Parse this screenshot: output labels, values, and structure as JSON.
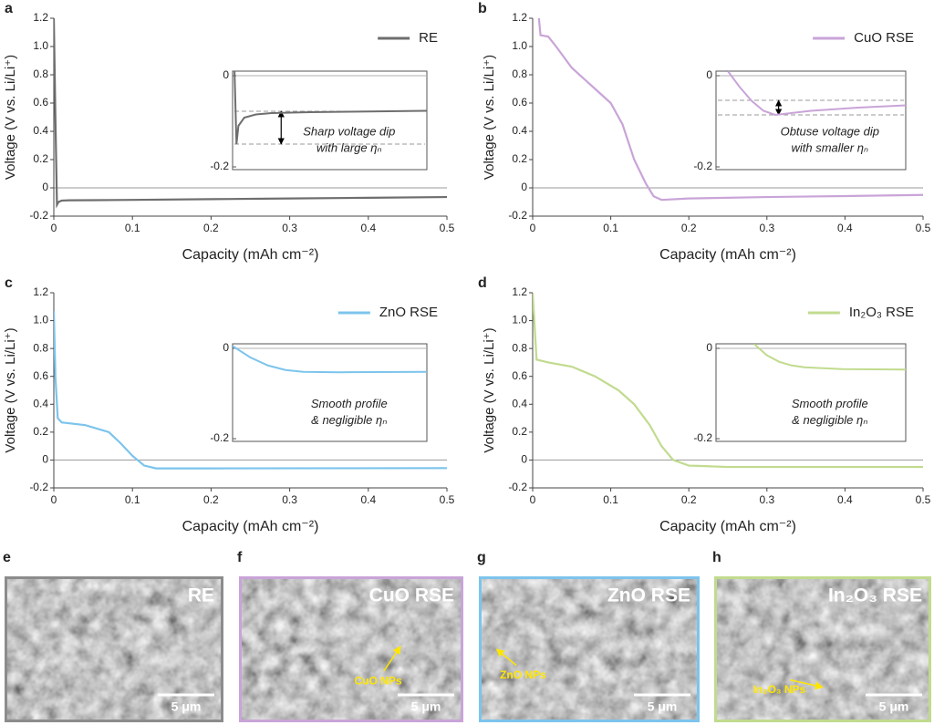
{
  "chart_data": [
    {
      "type": "line",
      "panel": "a",
      "xlabel": "Capacity (mAh cm⁻²)",
      "ylabel": "Voltage (V vs. Li/Li⁺)",
      "x": [
        0,
        0.002,
        0.004,
        0.006,
        0.01,
        0.02,
        0.05,
        0.1,
        0.2,
        0.3,
        0.4,
        0.5
      ],
      "series": [
        {
          "name": "RE",
          "color": "#6e6e6e",
          "values": [
            1.2,
            0.5,
            -0.12,
            -0.1,
            -0.09,
            -0.088,
            -0.087,
            -0.085,
            -0.08,
            -0.075,
            -0.07,
            -0.065
          ]
        }
      ],
      "xlim": [
        0,
        0.5
      ],
      "ylim": [
        -0.2,
        1.2
      ],
      "xticks": [
        0,
        0.1,
        0.2,
        0.3,
        0.4,
        0.5
      ],
      "yticks": [
        -0.2,
        0,
        0.2,
        0.4,
        0.6,
        0.8,
        {
          "value": 1,
          "label": "1.0"
        },
        1.2
      ],
      "inset": {
        "x": [
          0.0005,
          0.001,
          0.0015,
          0.003,
          0.006,
          0.01,
          0.02,
          0.03,
          0.04,
          0.05
        ],
        "values": [
          0.01,
          -0.15,
          -0.11,
          -0.092,
          -0.085,
          -0.082,
          -0.08,
          -0.079,
          -0.078,
          -0.077
        ],
        "xlim": [
          0,
          0.05
        ],
        "ylim": [
          -0.206,
          0.01
        ],
        "yticks": [
          0,
          -0.2
        ],
        "reference_lines": [
          -0.078,
          -0.15
        ],
        "annotation": [
          "Sharp voltage dip",
          "with large ηₙ"
        ]
      }
    },
    {
      "type": "line",
      "panel": "b",
      "xlabel": "Capacity (mAh cm⁻²)",
      "ylabel": "Voltage (V vs. Li/Li⁺)",
      "x": [
        0.008,
        0.01,
        0.02,
        0.03,
        0.05,
        0.08,
        0.1,
        0.115,
        0.13,
        0.145,
        0.155,
        0.165,
        0.2,
        0.3,
        0.4,
        0.5
      ],
      "series": [
        {
          "name": "CuO RSE",
          "color": "#c9a4d8",
          "values": [
            1.2,
            1.08,
            1.07,
            1.0,
            0.85,
            0.7,
            0.6,
            0.45,
            0.2,
            0.03,
            -0.06,
            -0.085,
            -0.075,
            -0.065,
            -0.058,
            -0.05
          ]
        }
      ],
      "xlim": [
        0,
        0.5
      ],
      "ylim": [
        -0.2,
        1.2
      ],
      "xticks": [
        0,
        0.1,
        0.2,
        0.3,
        0.4,
        0.5
      ],
      "yticks": [
        -0.2,
        0,
        0.2,
        0.4,
        0.6,
        0.8,
        {
          "value": 1,
          "label": "1.0"
        },
        1.2
      ],
      "inset": {
        "x": [
          0.145,
          0.15,
          0.155,
          0.16,
          0.165,
          0.17,
          0.18,
          0.2,
          0.22
        ],
        "values": [
          0.01,
          -0.025,
          -0.055,
          -0.077,
          -0.086,
          -0.083,
          -0.077,
          -0.07,
          -0.065
        ],
        "xlim": [
          0.14,
          0.22
        ],
        "ylim": [
          -0.206,
          0.01
        ],
        "yticks": [
          0,
          -0.2
        ],
        "reference_lines": [
          -0.054,
          -0.086
        ],
        "annotation": [
          "Obtuse voltage dip",
          "with smaller ηₙ"
        ]
      }
    },
    {
      "type": "line",
      "panel": "c",
      "xlabel": "Capacity (mAh cm⁻²)",
      "ylabel": "Voltage (V vs. Li/Li⁺)",
      "x": [
        0,
        0.002,
        0.005,
        0.01,
        0.04,
        0.07,
        0.085,
        0.1,
        0.115,
        0.13,
        0.2,
        0.5
      ],
      "series": [
        {
          "name": "ZnO RSE",
          "color": "#7cc4ec",
          "values": [
            1.07,
            0.6,
            0.3,
            0.27,
            0.25,
            0.2,
            0.12,
            0.03,
            -0.04,
            -0.06,
            -0.06,
            -0.058
          ]
        }
      ],
      "xlim": [
        0,
        0.5
      ],
      "ylim": [
        -0.2,
        1.2
      ],
      "xticks": [
        0,
        0.1,
        0.2,
        0.3,
        0.4,
        0.5
      ],
      "yticks": [
        -0.2,
        0,
        0.2,
        0.4,
        0.6,
        0.8,
        {
          "value": 1,
          "label": "1.0"
        },
        1.2
      ],
      "inset": {
        "x": [
          0.09,
          0.1,
          0.11,
          0.12,
          0.13,
          0.15,
          0.2
        ],
        "values": [
          0.005,
          -0.02,
          -0.038,
          -0.048,
          -0.052,
          -0.053,
          -0.052
        ],
        "xlim": [
          0.09,
          0.2
        ],
        "ylim": [
          -0.206,
          0.01
        ],
        "yticks": [
          0,
          -0.2
        ],
        "annotation": [
          "Smooth profile",
          "& negligible ηₙ"
        ]
      }
    },
    {
      "type": "line",
      "panel": "d",
      "xlabel": "Capacity (mAh cm⁻²)",
      "ylabel": "Voltage (V vs. Li/Li⁺)",
      "x": [
        0,
        0.005,
        0.02,
        0.05,
        0.08,
        0.11,
        0.13,
        0.15,
        0.165,
        0.18,
        0.2,
        0.25,
        0.5
      ],
      "series": [
        {
          "name": "In₂O₃ RSE",
          "color": "#c1db8e",
          "values": [
            1.2,
            0.72,
            0.7,
            0.67,
            0.6,
            0.5,
            0.4,
            0.25,
            0.1,
            0,
            -0.04,
            -0.05,
            -0.05
          ]
        }
      ],
      "xlim": [
        0,
        0.5
      ],
      "ylim": [
        -0.2,
        1.2
      ],
      "xticks": [
        0,
        0.1,
        0.2,
        0.3,
        0.4,
        0.5
      ],
      "yticks": [
        -0.2,
        0,
        0.2,
        0.4,
        0.6,
        0.8,
        {
          "value": 1,
          "label": "1.0"
        },
        1.2
      ],
      "inset": {
        "x": [
          0.18,
          0.19,
          0.2,
          0.21,
          0.22,
          0.25,
          0.3
        ],
        "values": [
          0.01,
          -0.015,
          -0.03,
          -0.038,
          -0.042,
          -0.046,
          -0.047
        ],
        "xlim": [
          0.15,
          0.3
        ],
        "ylim": [
          -0.206,
          0.01
        ],
        "yticks": [
          0,
          -0.2
        ],
        "annotation": [
          "Smooth profile",
          "& negligible ηₙ"
        ]
      }
    }
  ],
  "images": [
    {
      "panel": "e",
      "label": "RE",
      "scale_bar": "5 μm"
    },
    {
      "panel": "f",
      "label": "CuO RSE",
      "annotation": "CuO NPs",
      "scale_bar": "5 μm"
    },
    {
      "panel": "g",
      "label": "ZnO RSE",
      "annotation": "ZnO NPs",
      "scale_bar": "5 μm"
    },
    {
      "panel": "h",
      "label": "In₂O₃ RSE",
      "annotation": "In₂O₃ NPs",
      "scale_bar": "5 μm"
    }
  ]
}
